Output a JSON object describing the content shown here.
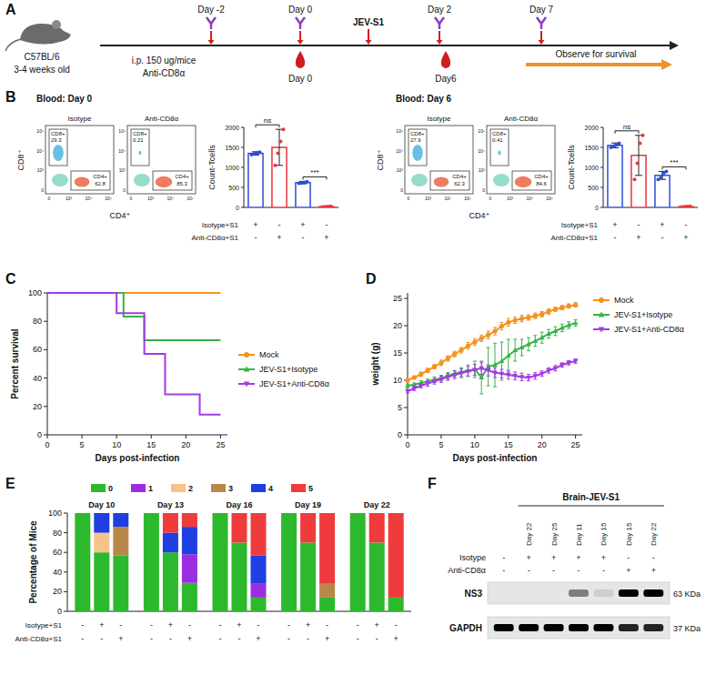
{
  "schematic": {
    "label": "A",
    "strain": "C57BL/6",
    "age": "3-4 weeks old",
    "route": "i.p. 150 ug/mice",
    "antibody": "Anti-CD8α",
    "infection": "JEV-S1",
    "injection_days": [
      "Day -2",
      "Day 0",
      "Day 2",
      "Day 7"
    ],
    "bleed_days": [
      "Day 0",
      "Day6"
    ],
    "follow_up": "Observe for survival"
  },
  "flow": {
    "label": "B",
    "x_label": "CD4⁺",
    "y_label": "CD8⁺",
    "axis_ticks": [
      "0",
      "10³",
      "10⁴",
      "10⁵"
    ],
    "panels": [
      {
        "title": "Blood: Day 0",
        "plots": [
          {
            "title": "Isotype",
            "gates": [
              {
                "name": "CD8+",
                "value": 29.3
              },
              {
                "name": "CD4+",
                "value": 62.8
              }
            ]
          },
          {
            "title": "Anti-CD8α",
            "gates": [
              {
                "name": "CD8+",
                "value": 0.21
              },
              {
                "name": "CD4+",
                "value": 85.3
              }
            ]
          }
        ]
      },
      {
        "title": "Blood: Day 6",
        "plots": [
          {
            "title": "Isotype",
            "gates": [
              {
                "name": "CD8+",
                "value": 27.9
              },
              {
                "name": "CD4+",
                "value": 62.3
              }
            ]
          },
          {
            "title": "Anti-CD8α",
            "gates": [
              {
                "name": "CD8+",
                "value": 0.41
              },
              {
                "name": "CD4+",
                "value": 84.6
              }
            ]
          }
        ]
      }
    ]
  },
  "chart_data": [
    {
      "type": "bar",
      "y_label": "Count-Tcells",
      "categories": [
        null,
        null,
        null,
        null
      ],
      "values": [
        1350,
        1500,
        620,
        20
      ],
      "errors": [
        40,
        450,
        30,
        10
      ],
      "points": [
        [
          1320,
          1340,
          1360,
          1380
        ],
        [
          1050,
          1350,
          1650,
          1950
        ],
        [
          600,
          610,
          625,
          640
        ],
        [
          10,
          15,
          20,
          30
        ]
      ],
      "colors": [
        "#2f4fd6",
        "#e8343f",
        "#2f4fd6",
        "#e8343f"
      ],
      "ylim": [
        0,
        2000
      ],
      "yticks": [
        0,
        500,
        1000,
        1500,
        2000
      ],
      "rows": [
        {
          "name": "Isotype+S1",
          "signs": [
            "+",
            "-",
            "+",
            "-"
          ]
        },
        {
          "name": "Anti-CD8α+S1",
          "signs": [
            "-",
            "+",
            "-",
            "+"
          ]
        }
      ],
      "annotations": [
        {
          "text": "ns",
          "bars": [
            0,
            1
          ]
        },
        {
          "text": "***",
          "bars": [
            2,
            3
          ]
        }
      ]
    },
    {
      "type": "bar",
      "y_label": "Count-Tcells",
      "categories": [
        null,
        null,
        null,
        null
      ],
      "values": [
        1550,
        1300,
        800,
        20
      ],
      "errors": [
        60,
        500,
        100,
        10
      ],
      "points": [
        [
          1500,
          1530,
          1560,
          1600
        ],
        [
          700,
          1100,
          1600,
          1800
        ],
        [
          700,
          750,
          850,
          900
        ],
        [
          10,
          15,
          20,
          30
        ]
      ],
      "colors": [
        "#2f4fd6",
        "#e8343f",
        "#2f4fd6",
        "#e8343f"
      ],
      "ylim": [
        0,
        2000
      ],
      "yticks": [
        0,
        500,
        1000,
        1500,
        2000
      ],
      "rows": [
        {
          "name": "Isotype+S1",
          "signs": [
            "+",
            "-",
            "+",
            "-"
          ]
        },
        {
          "name": "Anti-CD8α+S1",
          "signs": [
            "-",
            "+",
            "-",
            "+"
          ]
        }
      ],
      "annotations": [
        {
          "text": "ns",
          "bars": [
            0,
            1
          ]
        },
        {
          "text": "***",
          "bars": [
            2,
            3
          ]
        }
      ]
    },
    {
      "label": "C",
      "type": "line",
      "line_style": "step",
      "x": [
        0,
        10,
        11,
        14,
        17,
        22,
        25
      ],
      "series": [
        {
          "name": "Mock",
          "color": "#f5921e",
          "marker": "circle",
          "values": [
            100,
            100,
            100,
            100,
            100,
            100,
            100
          ]
        },
        {
          "name": "JEV-S1+Isotype",
          "color": "#37b34a",
          "marker": "triangle",
          "values": [
            100,
            100,
            83.3,
            66.7,
            66.7,
            66.7,
            66.7
          ]
        },
        {
          "name": "JEV-S1+Anti-CD8α",
          "color": "#a03ce6",
          "marker": "triangle-down",
          "values": [
            100,
            85.7,
            85.7,
            57.1,
            28.6,
            14.3,
            14.3
          ]
        }
      ],
      "x_label": "Days post-infection",
      "y_label": "Percent survival",
      "xlim": [
        0,
        26
      ],
      "ylim": [
        0,
        100
      ],
      "xticks": [
        0,
        5,
        10,
        15,
        20,
        25
      ],
      "yticks": [
        0,
        20,
        40,
        60,
        80,
        100
      ],
      "legend": "right"
    },
    {
      "label": "D",
      "type": "line",
      "x": [
        0,
        1,
        2,
        3,
        4,
        5,
        6,
        7,
        8,
        9,
        10,
        11,
        12,
        13,
        14,
        15,
        16,
        17,
        18,
        19,
        20,
        21,
        22,
        23,
        24,
        25
      ],
      "series": [
        {
          "name": "Mock",
          "color": "#f5921e",
          "marker": "circle",
          "values": [
            10,
            10.5,
            11.1,
            11.8,
            12.5,
            13.2,
            14,
            14.8,
            15.5,
            16.3,
            17,
            17.7,
            18.3,
            19,
            19.9,
            20.6,
            21,
            21.3,
            21.5,
            21.8,
            22.1,
            22.6,
            23,
            23.3,
            23.6,
            23.8
          ],
          "errors": [
            0.3,
            0.3,
            0.4,
            0.4,
            0.4,
            0.5,
            0.5,
            0.5,
            0.5,
            0.6,
            0.6,
            0.6,
            0.7,
            0.7,
            0.7,
            0.7,
            0.6,
            0.6,
            0.5,
            0.5,
            0.5,
            0.5,
            0.4,
            0.4,
            0.4,
            0.4
          ]
        },
        {
          "name": "JEV-S1+Isotype",
          "color": "#37b34a",
          "marker": "triangle",
          "values": [
            9,
            9.2,
            9.5,
            9.8,
            10.1,
            10.4,
            10.8,
            11.2,
            11.5,
            11.8,
            12,
            10.5,
            12.5,
            12.8,
            13.5,
            14.5,
            15.5,
            16,
            16.6,
            17.2,
            17.8,
            18.5,
            19,
            19.6,
            20.1,
            20.5
          ],
          "errors": [
            0.3,
            0.3,
            0.4,
            0.4,
            0.5,
            0.5,
            0.6,
            0.6,
            0.8,
            1,
            1.5,
            3,
            3.5,
            4,
            3.5,
            3,
            2,
            1.5,
            1.2,
            1,
            1,
            0.8,
            0.8,
            0.7,
            0.6,
            0.6
          ]
        },
        {
          "name": "JEV-S1+Anti-CD8α",
          "color": "#a03ce6",
          "marker": "triangle-down",
          "values": [
            8,
            8.5,
            9,
            9.4,
            9.8,
            10.2,
            10.6,
            11,
            11.3,
            11.6,
            11.9,
            12.2,
            11.8,
            11.4,
            11.2,
            11,
            10.8,
            10.6,
            10.5,
            10.8,
            11.2,
            11.8,
            12.2,
            12.8,
            13.2,
            13.5
          ],
          "errors": [
            0.3,
            0.4,
            0.4,
            0.5,
            0.5,
            0.6,
            0.6,
            0.7,
            0.8,
            0.9,
            1,
            1.1,
            1,
            0.9,
            0.8,
            0.8,
            0.7,
            0.7,
            0.6,
            0.6,
            0.5,
            0.5,
            0.5,
            0.4,
            0.4,
            0.4
          ]
        }
      ],
      "x_label": "Days post-infection",
      "y_label": "weight (g)",
      "xlim": [
        0,
        26
      ],
      "ylim": [
        0,
        26
      ],
      "xticks": [
        0,
        5,
        10,
        15,
        20,
        25
      ],
      "yticks": [
        0,
        5,
        10,
        15,
        20,
        25
      ],
      "legend": "right"
    },
    {
      "label": "E",
      "type": "bar",
      "stacked": true,
      "categories": [
        null,
        null,
        null,
        null,
        null,
        null,
        null,
        null,
        null,
        null,
        null,
        null,
        null,
        null,
        null
      ],
      "groups": [
        "Day 10",
        "Day 13",
        "Day 16",
        "Day 19",
        "Day 22"
      ],
      "series": [
        {
          "name": "0",
          "color": "#2db92d",
          "values": [
            100,
            60,
            57,
            100,
            60,
            29,
            100,
            70,
            14,
            100,
            70,
            14,
            100,
            70,
            14
          ]
        },
        {
          "name": "1",
          "color": "#9b2de0",
          "values": [
            0,
            0,
            0,
            0,
            0,
            29,
            0,
            0,
            14,
            0,
            0,
            0,
            0,
            0,
            0
          ]
        },
        {
          "name": "2",
          "color": "#f5c28a",
          "values": [
            0,
            20,
            0,
            0,
            0,
            0,
            0,
            0,
            0,
            0,
            0,
            0,
            0,
            0,
            0
          ]
        },
        {
          "name": "3",
          "color": "#b8884a",
          "values": [
            0,
            0,
            29,
            0,
            0,
            0,
            0,
            0,
            0,
            0,
            0,
            14,
            0,
            0,
            0
          ]
        },
        {
          "name": "4",
          "color": "#1f3fe0",
          "values": [
            0,
            20,
            14,
            0,
            20,
            28,
            0,
            0,
            29,
            0,
            0,
            0,
            0,
            0,
            0
          ]
        },
        {
          "name": "5",
          "color": "#ef3b3b",
          "values": [
            0,
            0,
            0,
            0,
            20,
            14,
            0,
            30,
            43,
            0,
            30,
            72,
            0,
            30,
            86
          ]
        }
      ],
      "y_label": "Percentage of Mice",
      "ylim": [
        0,
        100
      ],
      "yticks": [
        0,
        20,
        40,
        60,
        80,
        100
      ],
      "legend": "top",
      "rows": [
        {
          "name": "Isotype+S1",
          "signs": [
            "-",
            "+",
            "-",
            "-",
            "+",
            "-",
            "-",
            "+",
            "-",
            "-",
            "+",
            "-",
            "-",
            "+",
            "-"
          ]
        },
        {
          "name": "Anti-CD8α+S1",
          "signs": [
            "-",
            "-",
            "+",
            "-",
            "-",
            "+",
            "-",
            "-",
            "+",
            "-",
            "-",
            "+",
            "-",
            "-",
            "+"
          ]
        }
      ]
    }
  ],
  "blot": {
    "label": "F",
    "header": "Brain-JEV-S1",
    "lanes": [
      null,
      "Day 22",
      "Day 25",
      "Day 11",
      "Day 15",
      "Day 15",
      "Day 22"
    ],
    "rows": [
      {
        "name": "Isotype",
        "signs": [
          "-",
          "+",
          "+",
          "+",
          "+",
          "-",
          "-"
        ]
      },
      {
        "name": "Anti-CD8α",
        "signs": [
          "-",
          "-",
          "-",
          "-",
          "-",
          "+",
          "+"
        ]
      }
    ],
    "bands": [
      {
        "name": "NS3",
        "size": "63 KDa",
        "intensity": [
          0,
          0,
          0,
          0.45,
          0.1,
          1,
          1
        ]
      },
      {
        "name": "GAPDH",
        "size": "37 KDa",
        "intensity": [
          1,
          1,
          1,
          1,
          1,
          0.85,
          0.85
        ]
      }
    ]
  }
}
